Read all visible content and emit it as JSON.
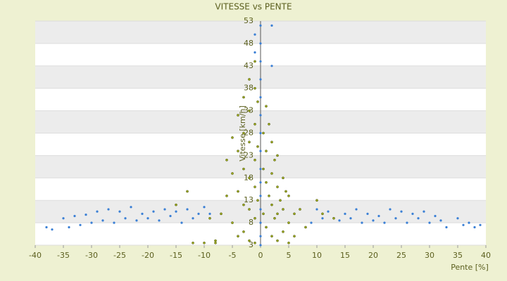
{
  "chart_data": {
    "type": "scatter",
    "title": "VITESSE vs PENTE",
    "x_label": "Pente [%]",
    "y_label": "Vitesse [km/h]",
    "xlim": [
      -40,
      40
    ],
    "xticks": [
      -40,
      -35,
      -30,
      -25,
      -20,
      -15,
      -10,
      -5,
      0,
      5,
      10,
      15,
      20,
      25,
      30,
      35,
      40
    ],
    "ylim": [
      3,
      53
    ],
    "yticks": [
      3,
      8,
      13,
      18,
      23,
      28,
      33,
      38,
      43,
      48,
      53
    ],
    "grid": true,
    "series": [
      {
        "color": "#3a7fd5",
        "x": [
          -38,
          -37,
          -35,
          -34,
          -33,
          -32,
          -31,
          -30,
          -29,
          -28,
          -27,
          -26,
          -25,
          -24,
          -23,
          -22,
          -21,
          -20,
          -19,
          -18,
          -17,
          -16,
          -15,
          -14,
          -13,
          -12,
          -11,
          -10,
          -9,
          0,
          0,
          0,
          0,
          0,
          0,
          0,
          0,
          0,
          0,
          0,
          0,
          0,
          0,
          0,
          -1,
          2,
          2,
          -1,
          9,
          10,
          11,
          12,
          14,
          15,
          16,
          17,
          18,
          19,
          20,
          21,
          22,
          23,
          24,
          25,
          26,
          27,
          28,
          29,
          30,
          31,
          32,
          33,
          35,
          36,
          37,
          38,
          39
        ],
        "y": [
          7,
          6.5,
          9,
          7,
          9.5,
          7.5,
          9.8,
          8,
          10.5,
          8.5,
          11,
          8,
          10.5,
          9,
          11.5,
          8.5,
          10,
          9,
          10.5,
          8.5,
          11,
          9.5,
          10.5,
          8,
          11,
          9,
          10,
          11.5,
          10,
          3,
          5,
          8,
          11,
          14,
          17,
          20,
          24,
          28,
          32,
          36,
          40,
          44,
          48,
          52,
          50,
          52,
          43,
          46,
          8,
          11,
          9,
          10.5,
          8.5,
          10,
          9,
          11,
          8,
          10,
          8.5,
          9.5,
          8,
          11,
          9,
          10.5,
          8,
          10,
          9,
          10.5,
          8,
          9.5,
          8.5,
          7,
          9,
          7.5,
          8,
          7,
          7.5
        ]
      },
      {
        "color": "#9aa81e",
        "x": [
          -12,
          -10,
          -9,
          -8,
          -7,
          -6,
          -6,
          -5,
          -5,
          -5,
          -4,
          -4,
          -4,
          -4,
          -3,
          -3,
          -3,
          -3,
          -3,
          -2,
          -2,
          -2,
          -2,
          -2,
          -2,
          -1,
          -1,
          -1,
          -1,
          -1,
          -1,
          -1,
          -0.5,
          -0.5,
          -0.5,
          0.5,
          0.5,
          0.5,
          1,
          1,
          1,
          1,
          1.5,
          1.5,
          2,
          2,
          2,
          2,
          2.5,
          2.5,
          3,
          3,
          3,
          3,
          3.5,
          4,
          4,
          4,
          4.5,
          5,
          5,
          5,
          6,
          6,
          7,
          8,
          10,
          11,
          13,
          -13,
          -8,
          -15
        ],
        "y": [
          3.5,
          3.5,
          9,
          4,
          10,
          14,
          22,
          27,
          19,
          8,
          32,
          24,
          15,
          5,
          36,
          28,
          20,
          12,
          6,
          40,
          33,
          26,
          18,
          11,
          4,
          44,
          38,
          30,
          22,
          16,
          9,
          3.5,
          35,
          25,
          13,
          28,
          20,
          10,
          34,
          24,
          17,
          7,
          30,
          14,
          26,
          19,
          12,
          5,
          22,
          9,
          23,
          16,
          10,
          4,
          13,
          18,
          11,
          6,
          15,
          14,
          8,
          3.5,
          10,
          5,
          11,
          7,
          13,
          10,
          9,
          15,
          3.5,
          12
        ]
      }
    ]
  }
}
